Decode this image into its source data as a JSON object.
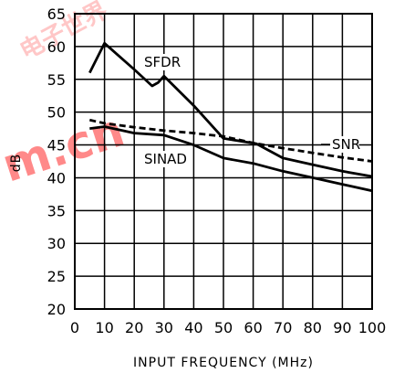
{
  "chart_data": {
    "type": "line",
    "xlabel": "INPUT FREQUENCY (MHz)",
    "ylabel": "dB",
    "xlim": [
      0,
      100
    ],
    "ylim": [
      20,
      65
    ],
    "xticks": [
      0,
      10,
      20,
      30,
      40,
      50,
      60,
      70,
      80,
      90,
      100
    ],
    "yticks": [
      20,
      25,
      30,
      35,
      40,
      45,
      50,
      55,
      60,
      65
    ],
    "grid": true,
    "legend": "labels placed beside lines",
    "series": [
      {
        "name": "SFDR",
        "style": "solid",
        "x": [
          5,
          10,
          20,
          26,
          28,
          30,
          40,
          50,
          61,
          70,
          80,
          90,
          100
        ],
        "y": [
          56,
          60.5,
          56.5,
          54,
          54.5,
          55.5,
          51,
          46,
          45.2,
          43,
          42,
          41,
          40.2
        ]
      },
      {
        "name": "SNR",
        "style": "dashed",
        "x": [
          5,
          10,
          20,
          30,
          40,
          50,
          60,
          70,
          80,
          90,
          100
        ],
        "y": [
          48.8,
          48.3,
          47.7,
          47.2,
          46.8,
          46.3,
          45.3,
          44.5,
          43.8,
          43.1,
          42.5
        ]
      },
      {
        "name": "SINAD",
        "style": "solid",
        "x": [
          5,
          10,
          20,
          30,
          40,
          50,
          60,
          70,
          80,
          90,
          100
        ],
        "y": [
          47.5,
          47.8,
          46.8,
          46.5,
          45,
          43,
          42.2,
          41,
          40,
          39,
          38
        ]
      }
    ]
  },
  "watermark": {
    "line1": "电子世界",
    "line2": "m.cn",
    "color": "#ff2a2a"
  }
}
